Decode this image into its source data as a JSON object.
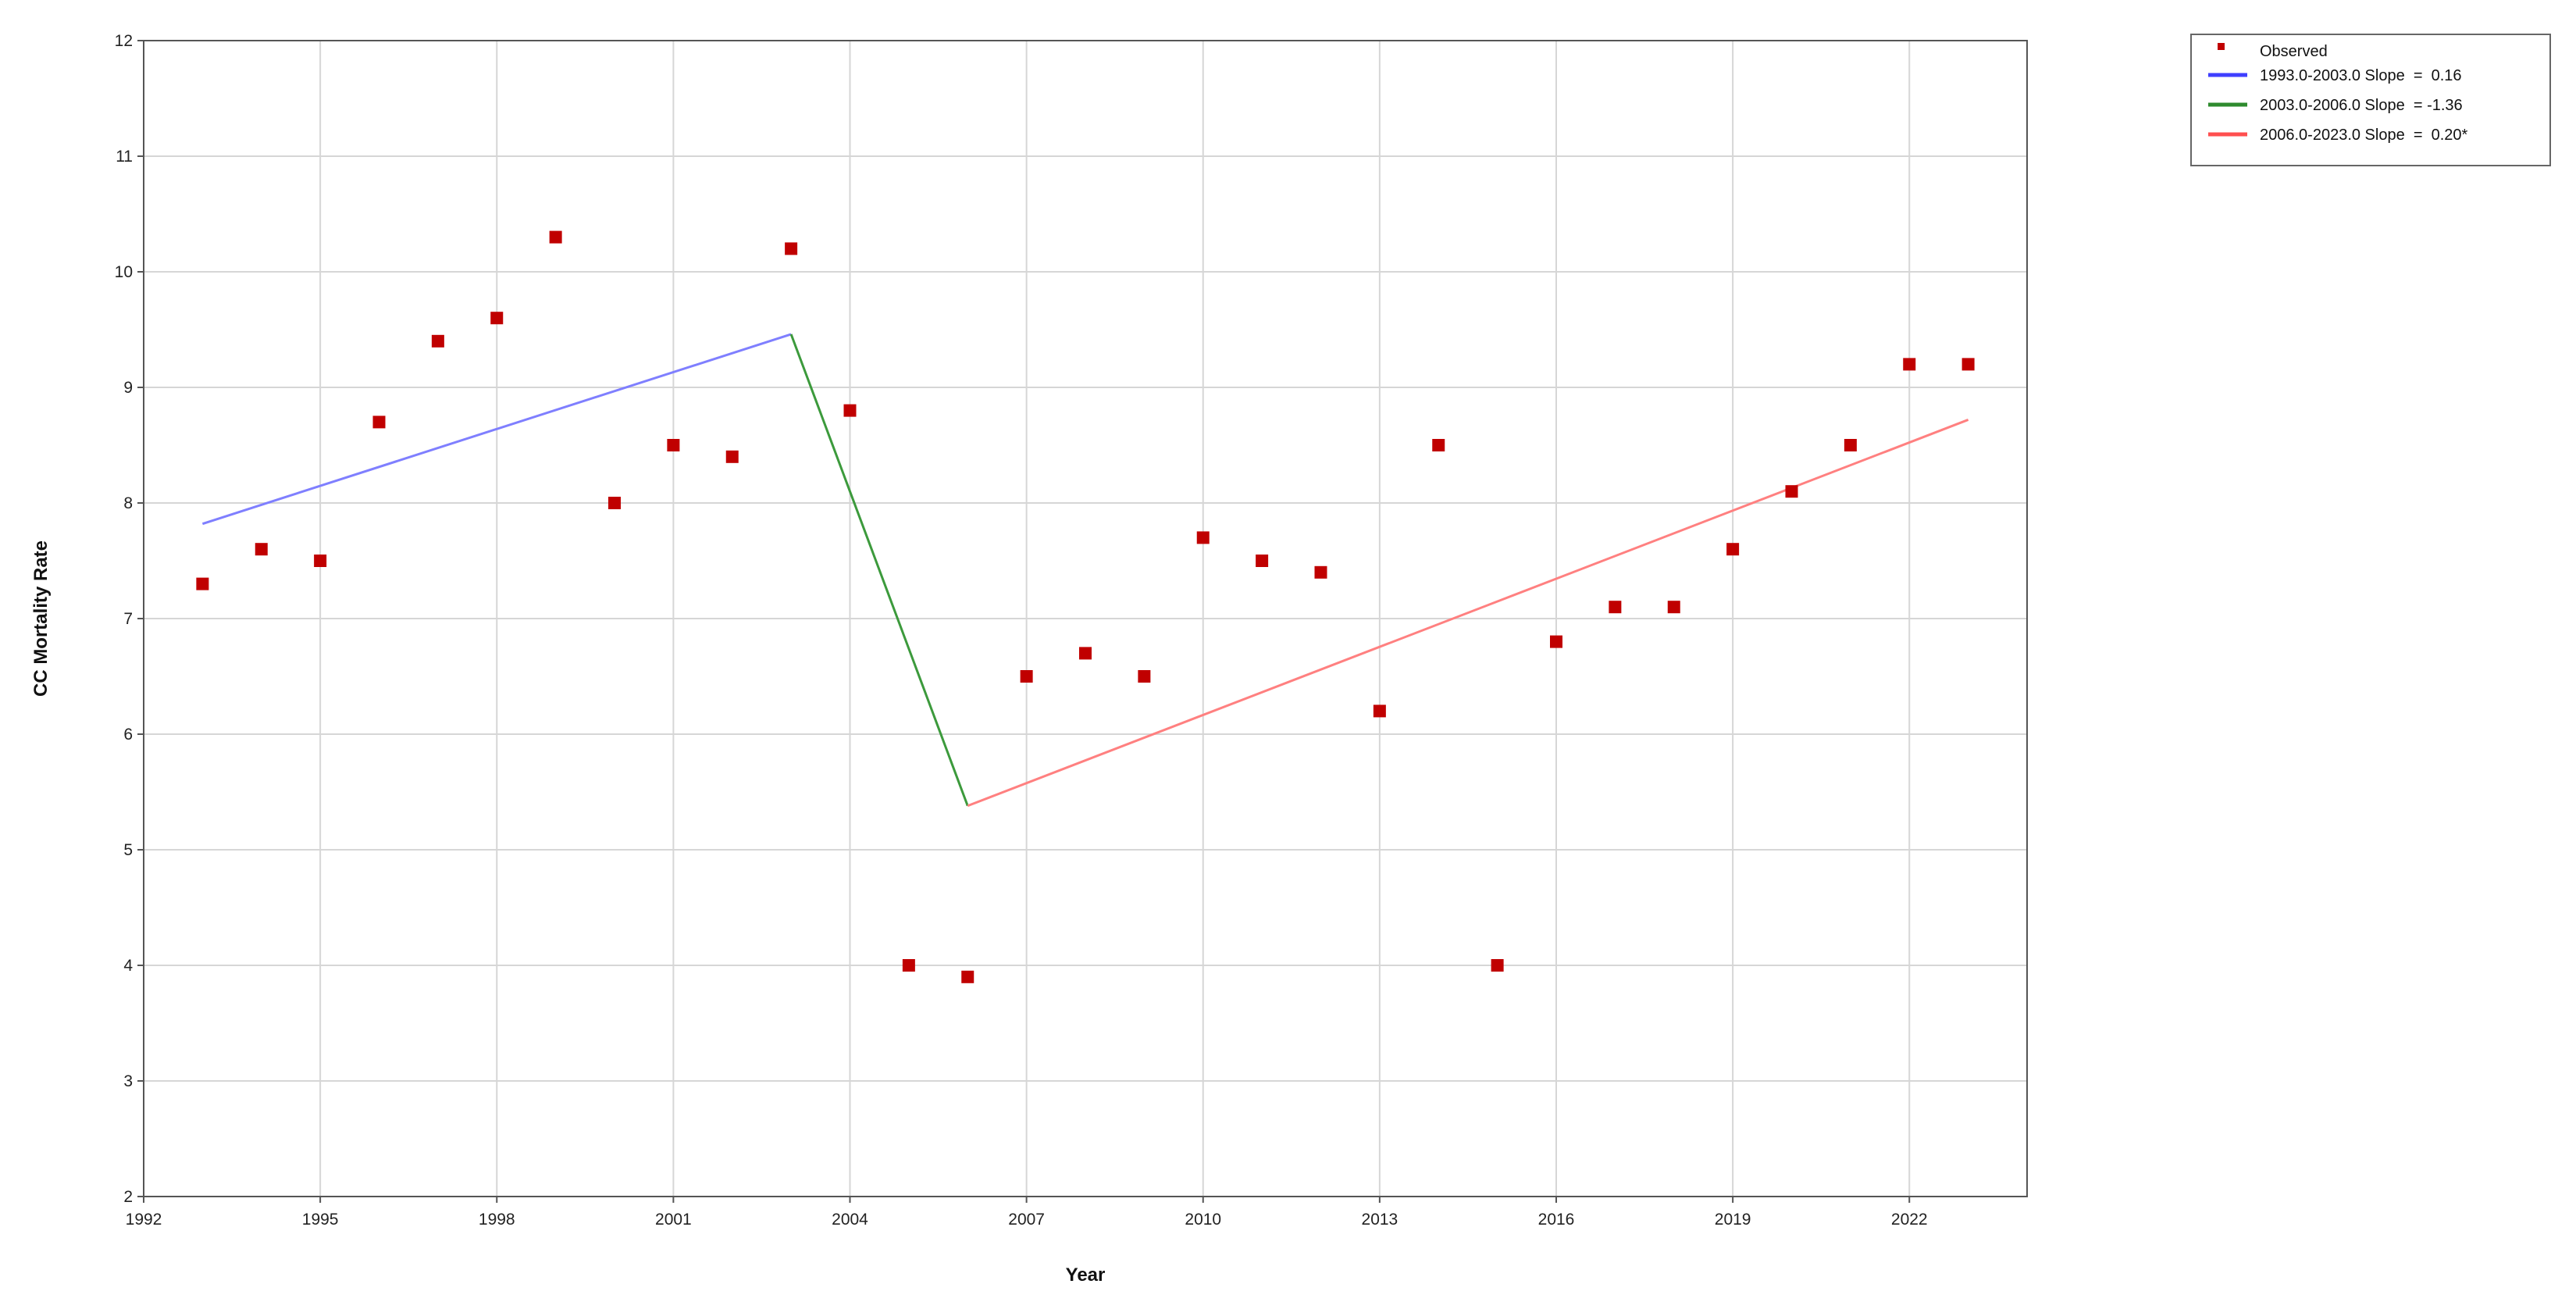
{
  "chart_data": {
    "type": "scatter",
    "title": "",
    "xlabel": "Year",
    "ylabel": "CC Mortality Rate",
    "xlim": [
      1992,
      2024
    ],
    "ylim": [
      2,
      12
    ],
    "x_ticks": [
      "1992",
      "1995",
      "1998",
      "2001",
      "2004",
      "2007",
      "2010",
      "2013",
      "2016",
      "2019",
      "2022"
    ],
    "y_ticks": [
      "2",
      "3",
      "4",
      "5",
      "6",
      "7",
      "8",
      "9",
      "10",
      "11",
      "12"
    ],
    "grid": true,
    "legend_position": "top-right, outside plot",
    "observed": {
      "name": "Observed",
      "color": "#c00000",
      "x": [
        1993,
        1994,
        1995,
        1996,
        1997,
        1998,
        1999,
        2000,
        2001,
        2002,
        2003,
        2004,
        2005,
        2006,
        2007,
        2008,
        2009,
        2010,
        2011,
        2012,
        2013,
        2014,
        2015,
        2016,
        2017,
        2018,
        2019,
        2020,
        2021,
        2022,
        2023
      ],
      "y": [
        7.3,
        7.6,
        7.5,
        8.7,
        9.4,
        9.6,
        10.3,
        8.0,
        8.5,
        8.4,
        10.2,
        8.8,
        4.0,
        3.9,
        6.5,
        6.7,
        6.5,
        7.7,
        7.5,
        7.4,
        6.2,
        8.5,
        4.0,
        6.8,
        7.1,
        7.1,
        7.6,
        8.1,
        8.5,
        9.2,
        9.2
      ]
    },
    "segments": [
      {
        "name": "1993.0-2003.0 Slope  =  0.16",
        "color": "#7f7fff",
        "legend_color": "#3f3fff",
        "x": [
          1993,
          2003
        ],
        "y": [
          7.82,
          9.46
        ]
      },
      {
        "name": "2003.0-2006.0 Slope  = -1.36",
        "color": "#3c9a3c",
        "legend_color": "#2e8b2e",
        "x": [
          2003,
          2006
        ],
        "y": [
          9.46,
          5.38
        ]
      },
      {
        "name": "2006.0-2023.0 Slope  =  0.20*",
        "color": "#ff8080",
        "legend_color": "#ff4f4f",
        "x": [
          2006,
          2023
        ],
        "y": [
          5.38,
          8.72
        ]
      }
    ]
  }
}
